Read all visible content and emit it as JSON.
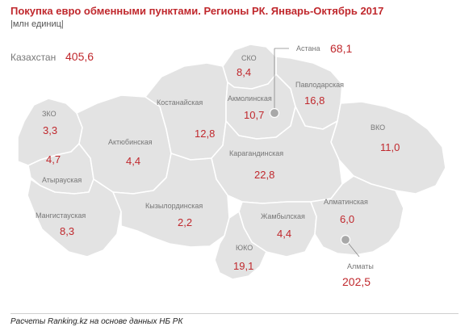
{
  "title": "Покупка евро обменными пунктами. Регионы РК. Январь-Октябрь 2017",
  "subtitle": "|млн единиц|",
  "total": {
    "label": "Казахстан",
    "value": "405,6"
  },
  "colors": {
    "accent": "#c0282d",
    "region_fill": "#e3e3e3",
    "label_gray": "#777777"
  },
  "regions": [
    {
      "key": "zko",
      "name": "ЗКО",
      "value": "3,3"
    },
    {
      "key": "atyrau",
      "name": "Атырауская",
      "value": "4,7"
    },
    {
      "key": "aktobe",
      "name": "Актюбинская",
      "value": "4,4"
    },
    {
      "key": "mangystau",
      "name": "Мангистауская",
      "value": "8,3"
    },
    {
      "key": "kostanay",
      "name": "Костанайская",
      "value": "12,8"
    },
    {
      "key": "sko",
      "name": "СКО",
      "value": "8,4"
    },
    {
      "key": "akmola",
      "name": "Акмолинская",
      "value": "10,7"
    },
    {
      "key": "pavlodar",
      "name": "Павлодарская",
      "value": "16,8"
    },
    {
      "key": "vko",
      "name": "ВКО",
      "value": "11,0"
    },
    {
      "key": "karaganda",
      "name": "Карагандинская",
      "value": "22,8"
    },
    {
      "key": "kyzylorda",
      "name": "Кызылординская",
      "value": "2,2"
    },
    {
      "key": "zhambyl",
      "name": "Жамбылская",
      "value": "4,4"
    },
    {
      "key": "almaty_obl",
      "name": "Алматинская",
      "value": "6,0"
    },
    {
      "key": "yuko",
      "name": "ЮКО",
      "value": "19,1"
    }
  ],
  "cities": [
    {
      "key": "astana",
      "name": "Астана",
      "value": "68,1",
      "icon": "city-dot"
    },
    {
      "key": "almaty",
      "name": "Алматы",
      "value": "202,5",
      "icon": "city-dot"
    }
  ],
  "source": "Расчеты Ranking.kz на основе данных НБ РК"
}
